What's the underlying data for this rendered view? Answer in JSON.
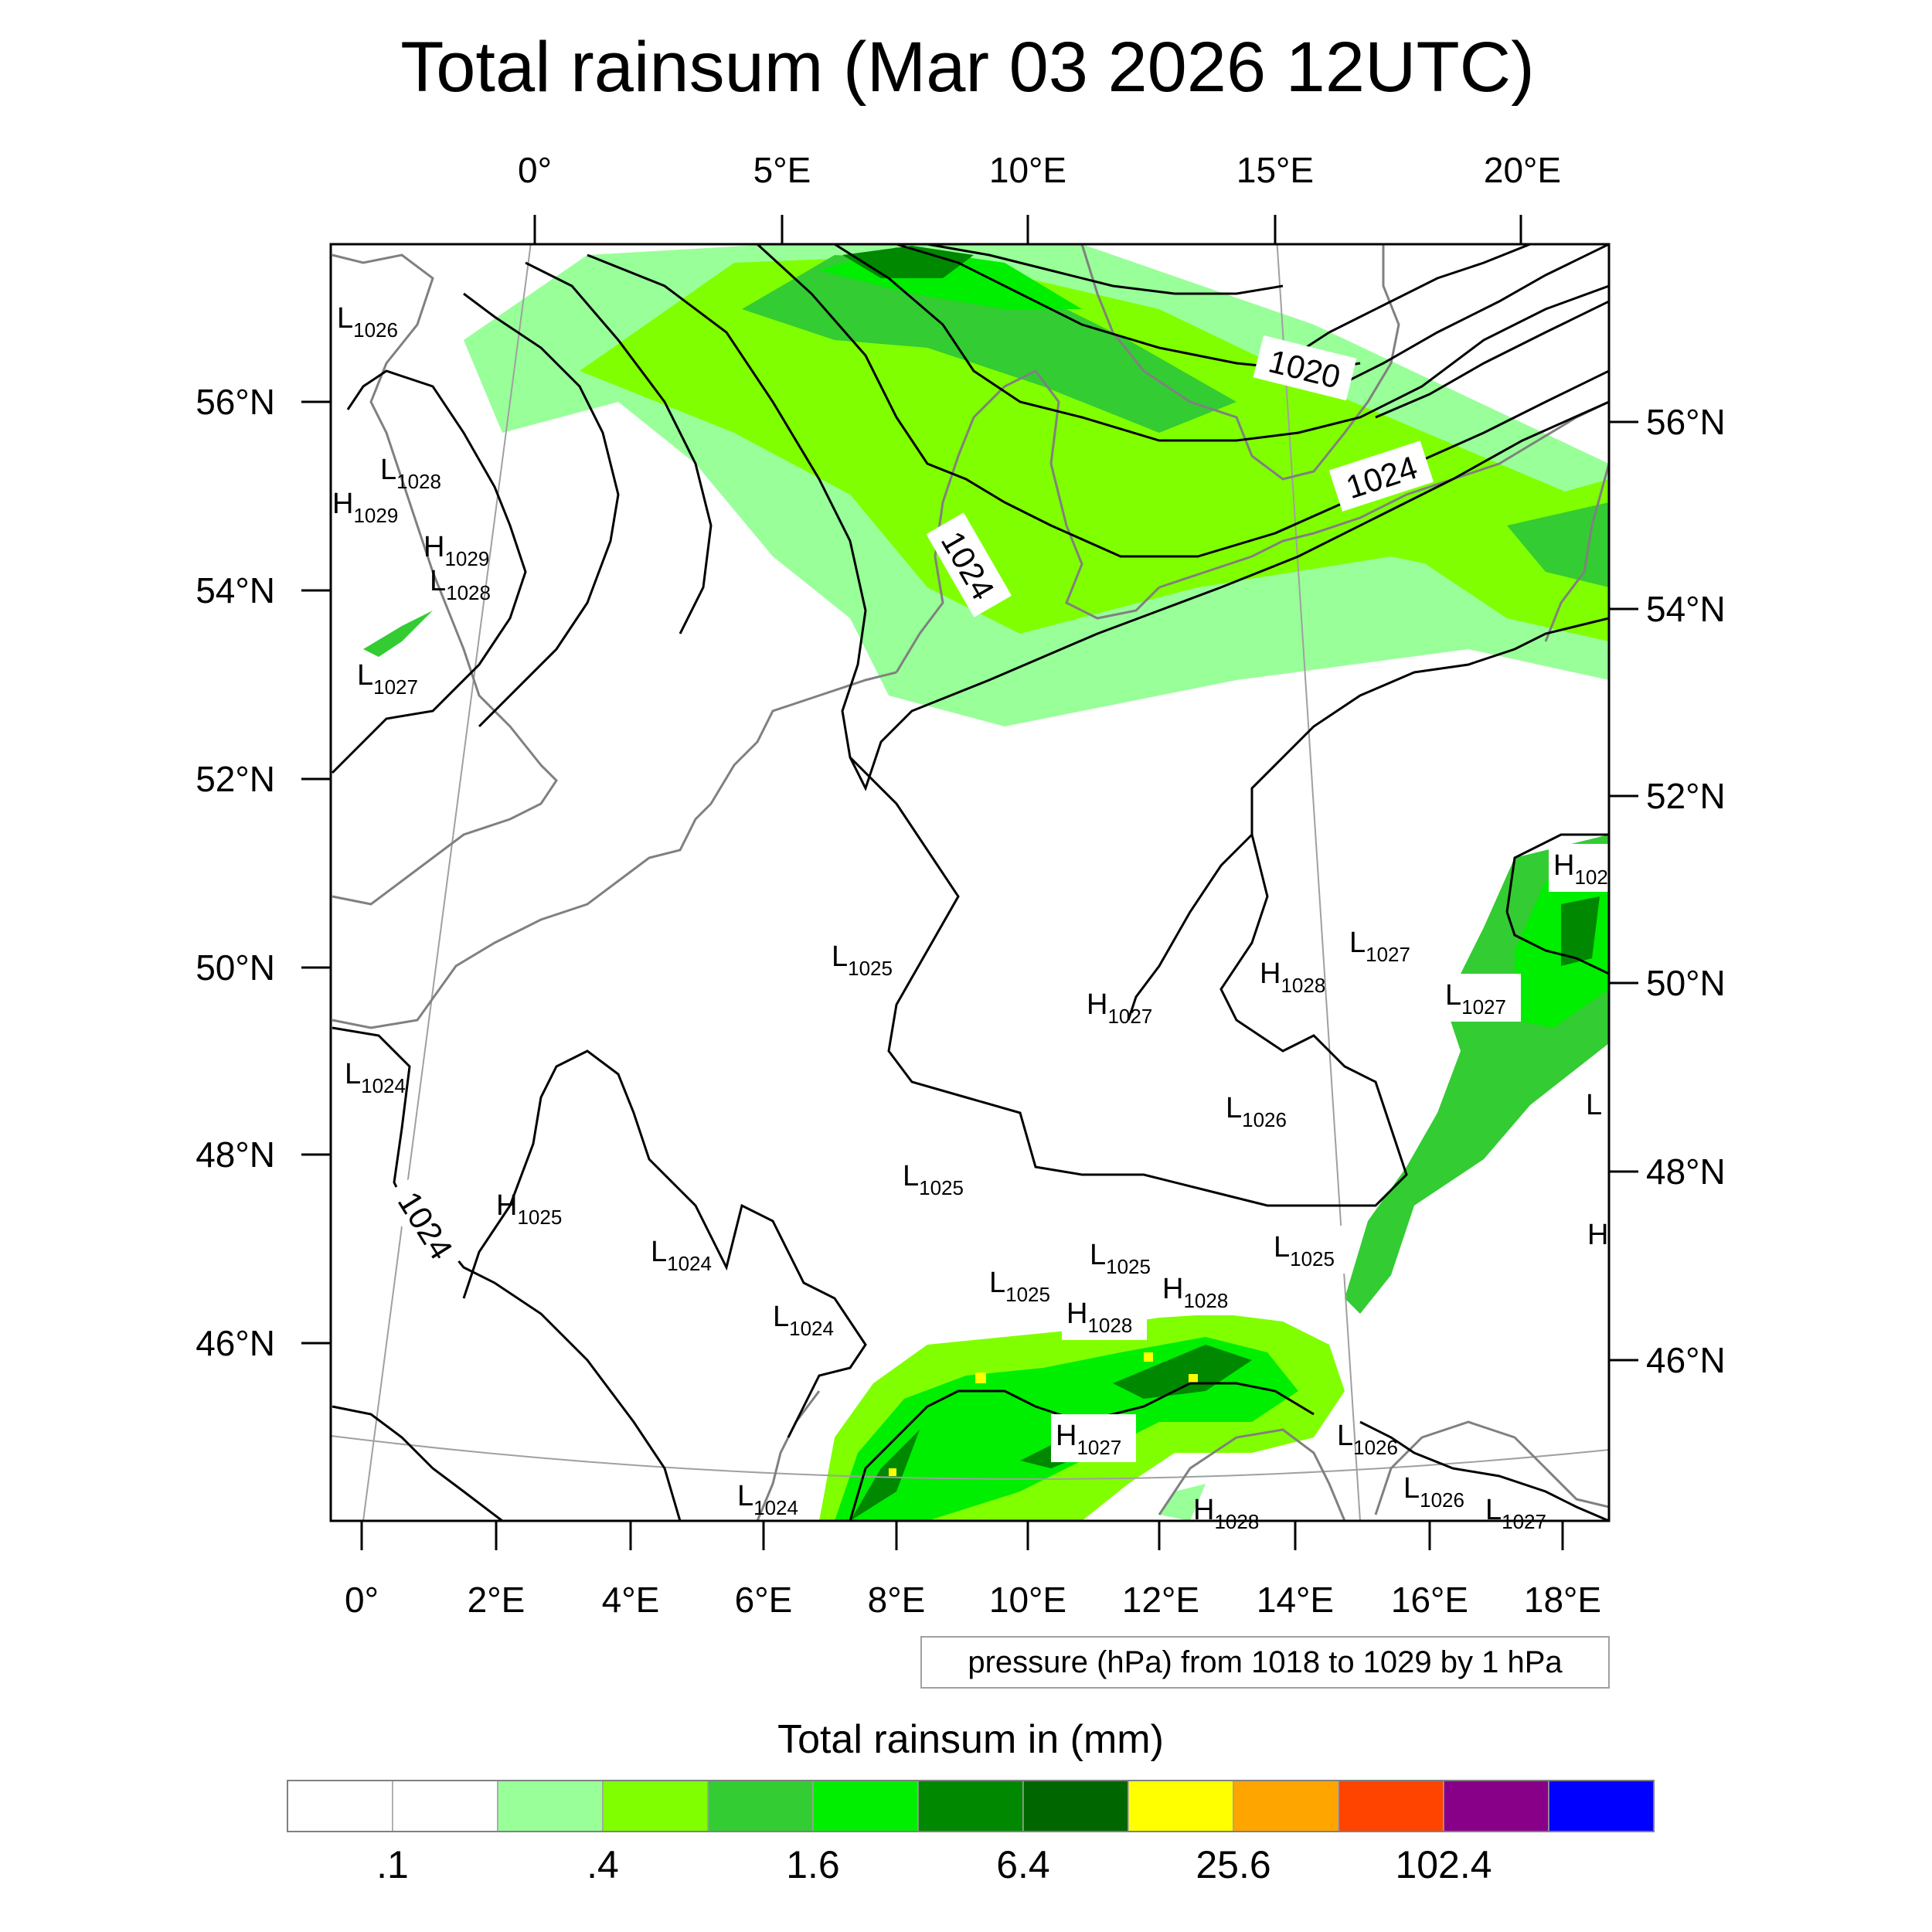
{
  "title": "Total rainsum (Mar 03 2026 12UTC)",
  "top_lon_labels": [
    "0°",
    "5°E",
    "10°E",
    "15°E",
    "20°E"
  ],
  "bottom_lon_labels": [
    "0°",
    "2°E",
    "4°E",
    "6°E",
    "8°E",
    "10°E",
    "12°E",
    "14°E",
    "16°E",
    "18°E"
  ],
  "left_lat_labels": [
    "56°N",
    "54°N",
    "52°N",
    "50°N",
    "48°N",
    "46°N"
  ],
  "right_lat_labels": [
    "56°N",
    "54°N",
    "52°N",
    "50°N",
    "48°N",
    "46°N"
  ],
  "contour_labels": [
    "1020",
    "1024",
    "1024",
    "1024"
  ],
  "pressure_centers": [
    {
      "type": "L",
      "value": "1026"
    },
    {
      "type": "L",
      "value": "1028"
    },
    {
      "type": "H",
      "value": "1029"
    },
    {
      "type": "H",
      "value": "1029"
    },
    {
      "type": "L",
      "value": "1028"
    },
    {
      "type": "L",
      "value": "1027"
    },
    {
      "type": "L",
      "value": "1025"
    },
    {
      "type": "H",
      "value": "1027"
    },
    {
      "type": "H",
      "value": "1028"
    },
    {
      "type": "L",
      "value": "1027"
    },
    {
      "type": "L",
      "value": "1027"
    },
    {
      "type": "H",
      "value": "102"
    },
    {
      "type": "L",
      "value": "1024"
    },
    {
      "type": "L",
      "value": "1026"
    },
    {
      "type": "L",
      "value": "1025"
    },
    {
      "type": "H",
      "value": "1025"
    },
    {
      "type": "L",
      "value": "1024"
    },
    {
      "type": "L",
      "value": "1025"
    },
    {
      "type": "L",
      "value": "1025"
    },
    {
      "type": "H",
      "value": "1028"
    },
    {
      "type": "L",
      "value": "1025"
    },
    {
      "type": "H",
      "value": "1028"
    },
    {
      "type": "L",
      "value": "1024"
    },
    {
      "type": "H",
      "value": "1027"
    },
    {
      "type": "L",
      "value": "1026"
    },
    {
      "type": "L",
      "value": "1024"
    },
    {
      "type": "L",
      "value": "1026"
    },
    {
      "type": "H",
      "value": "1028"
    },
    {
      "type": "L",
      "value": "1027"
    },
    {
      "type": "L",
      "value": ""
    },
    {
      "type": "H",
      "value": ""
    }
  ],
  "info_box": "pressure (hPa) from 1018 to 1029 by 1 hPa",
  "colorbar": {
    "title": "Total rainsum in (mm)",
    "colors": [
      "#ffffff",
      "#ffffff",
      "#99ff99",
      "#80ff00",
      "#33cc33",
      "#00ee00",
      "#008800",
      "#006600",
      "#ffff00",
      "#ffa500",
      "#ff4400",
      "#880088",
      "#0000ff"
    ],
    "tick_labels": [
      ".1",
      ".4",
      "1.6",
      "6.4",
      "25.6",
      "102.4"
    ]
  },
  "colors": {
    "contour": "#000000",
    "coastline": "#808080",
    "graticule": "#a0a0a0"
  }
}
